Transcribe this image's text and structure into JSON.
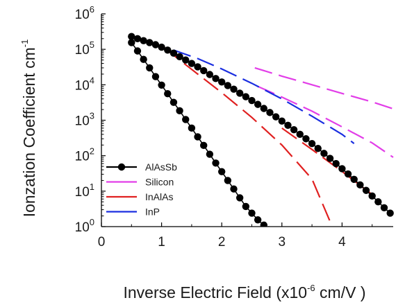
{
  "chart_data": {
    "type": "line",
    "xlabel_main": "Inverse Electric Field (x10",
    "xlabel_exp": "-6",
    "xlabel_unit": " cm/V )",
    "ylabel_main": "Ionzation Coefficient cm",
    "ylabel_exp": "-1",
    "xlim": [
      0,
      4.85
    ],
    "ylim_log10": [
      0,
      6
    ],
    "y_scale": "log",
    "x_ticks": [
      "0",
      "1",
      "2",
      "3",
      "4"
    ],
    "y_ticks": [
      {
        "base": "10",
        "exp": "0"
      },
      {
        "base": "10",
        "exp": "1"
      },
      {
        "base": "10",
        "exp": "2"
      },
      {
        "base": "10",
        "exp": "3"
      },
      {
        "base": "10",
        "exp": "4"
      },
      {
        "base": "10",
        "exp": "5"
      },
      {
        "base": "10",
        "exp": "6"
      }
    ],
    "legend_position": "bottom-left",
    "series": [
      {
        "name": "AlAsSb",
        "style": "line-markers",
        "color": "#000000",
        "points": [
          [
            0.5,
            230000
          ],
          [
            0.6,
            200000
          ],
          [
            0.7,
            175000
          ],
          [
            0.8,
            155000
          ],
          [
            0.9,
            135000
          ],
          [
            1.0,
            115000
          ],
          [
            1.1,
            95000
          ],
          [
            1.2,
            78000
          ],
          [
            1.3,
            62000
          ],
          [
            1.4,
            50000
          ],
          [
            1.5,
            40000
          ],
          [
            1.6,
            32000
          ],
          [
            1.7,
            25000
          ],
          [
            1.8,
            19500
          ],
          [
            1.9,
            15000
          ],
          [
            2.0,
            12000
          ],
          [
            2.1,
            9500
          ],
          [
            2.2,
            7500
          ],
          [
            2.3,
            5800
          ],
          [
            2.4,
            4600
          ],
          [
            2.5,
            3600
          ],
          [
            2.6,
            2800
          ],
          [
            2.7,
            2150
          ],
          [
            2.8,
            1650
          ],
          [
            2.9,
            1250
          ],
          [
            3.0,
            950
          ],
          [
            3.1,
            720
          ],
          [
            3.2,
            540
          ],
          [
            3.3,
            400
          ],
          [
            3.4,
            300
          ],
          [
            3.5,
            220
          ],
          [
            3.6,
            160
          ],
          [
            3.7,
            116
          ],
          [
            3.8,
            84
          ],
          [
            3.9,
            60
          ],
          [
            4.0,
            43
          ],
          [
            4.1,
            30.5
          ],
          [
            4.2,
            21.5
          ],
          [
            4.3,
            15
          ],
          [
            4.4,
            10.5
          ],
          [
            4.5,
            7.3
          ],
          [
            4.6,
            5
          ],
          [
            4.7,
            3.4
          ],
          [
            4.8,
            2.4
          ]
        ]
      },
      {
        "name": "AlAsSb",
        "style": "line-markers",
        "color": "#000000",
        "points": [
          [
            0.5,
            155000
          ],
          [
            0.6,
            90000
          ],
          [
            0.7,
            52000
          ],
          [
            0.8,
            30000
          ],
          [
            0.9,
            17000
          ],
          [
            1.0,
            9800
          ],
          [
            1.1,
            5600
          ],
          [
            1.2,
            3200
          ],
          [
            1.3,
            1850
          ],
          [
            1.4,
            1050
          ],
          [
            1.5,
            600
          ],
          [
            1.6,
            340
          ],
          [
            1.7,
            195
          ],
          [
            1.8,
            110
          ],
          [
            1.9,
            62
          ],
          [
            2.0,
            35.5
          ],
          [
            2.1,
            20
          ],
          [
            2.2,
            11.5
          ],
          [
            2.3,
            6.5
          ],
          [
            2.4,
            3.7
          ],
          [
            2.5,
            2.4
          ],
          [
            2.6,
            1.55
          ],
          [
            2.7,
            1.1
          ],
          [
            2.78,
            0.82
          ]
        ]
      },
      {
        "name": "Silicon",
        "style": "dashed",
        "color": "#e23ee8",
        "points": [
          [
            2.55,
            30000
          ],
          [
            3.0,
            17500
          ],
          [
            3.5,
            10000
          ],
          [
            4.0,
            5700
          ],
          [
            4.5,
            3300
          ],
          [
            4.85,
            2100
          ]
        ]
      },
      {
        "name": "Silicon",
        "style": "dashed",
        "color": "#e23ee8",
        "points": [
          [
            2.6,
            9000
          ],
          [
            3.0,
            4500
          ],
          [
            3.5,
            1800
          ],
          [
            4.0,
            650
          ],
          [
            4.5,
            230
          ],
          [
            4.85,
            90
          ]
        ]
      },
      {
        "name": "InAlAs",
        "style": "dashed",
        "color": "#e02020",
        "points": [
          [
            1.05,
            110000
          ],
          [
            1.3,
            50000
          ],
          [
            1.6,
            20000
          ],
          [
            2.0,
            6000
          ],
          [
            2.5,
            1200
          ],
          [
            3.0,
            200
          ],
          [
            3.5,
            22
          ],
          [
            3.8,
            1.4
          ]
        ]
      },
      {
        "name": "InAlAs",
        "style": "dashed",
        "color": "#e02020",
        "points": [
          [
            3.0,
            600
          ],
          [
            3.5,
            150
          ],
          [
            4.0,
            36
          ],
          [
            4.5,
            8
          ]
        ]
      },
      {
        "name": "InP",
        "style": "dashed",
        "color": "#1a2ee0",
        "points": [
          [
            1.2,
            95000
          ],
          [
            1.6,
            55000
          ],
          [
            2.0,
            28000
          ],
          [
            2.5,
            11000
          ],
          [
            3.0,
            4000
          ],
          [
            3.5,
            1300
          ],
          [
            4.0,
            400
          ],
          [
            4.2,
            220
          ]
        ]
      }
    ]
  }
}
